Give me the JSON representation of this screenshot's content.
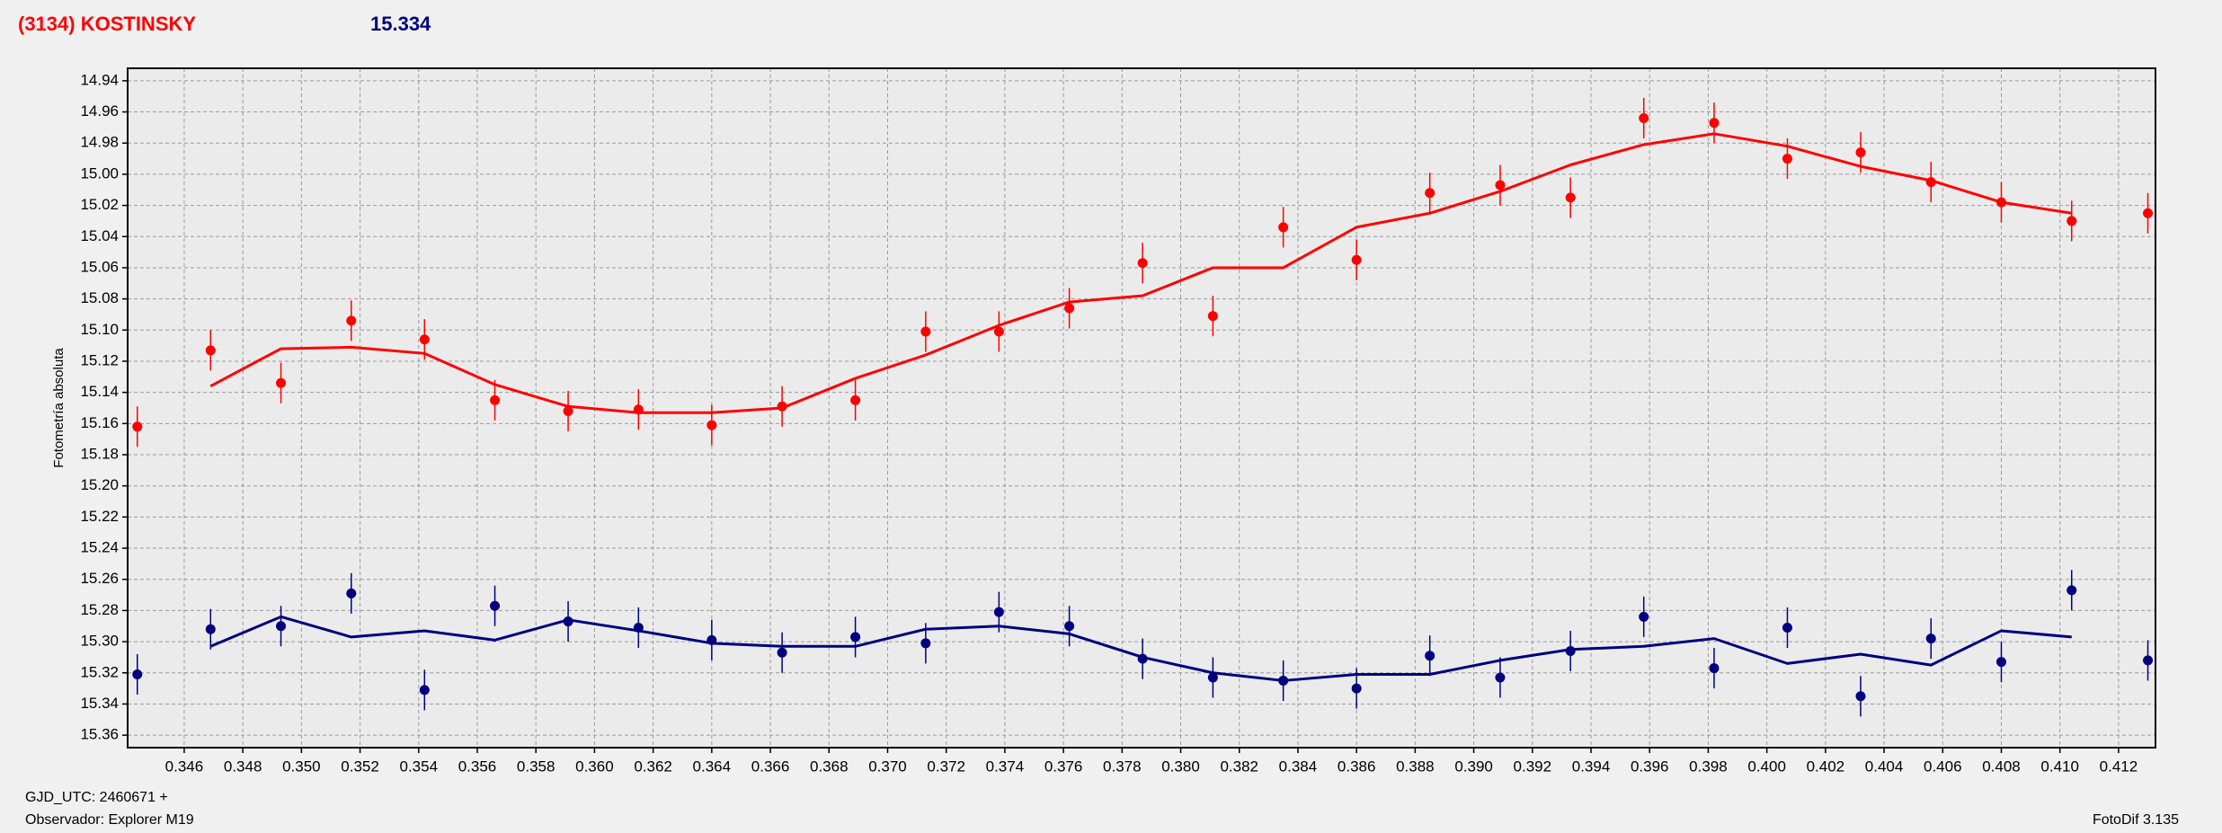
{
  "chart_data": {
    "type": "line",
    "title": "(3134) KOSTINSKY",
    "subtitle": "15.334",
    "ylabel": "Fotometría absoluta",
    "grid": true,
    "xlim": [
      0.34407,
      0.41326
    ],
    "ylim": [
      15.368,
      14.932
    ],
    "xticks": [
      0.346,
      0.348,
      {
        "value": 0.35,
        "label": "0.350"
      },
      0.352,
      0.354,
      0.356,
      0.358,
      {
        "value": 0.36,
        "label": "0.360"
      },
      0.362,
      0.364,
      0.366,
      0.368,
      {
        "value": 0.37,
        "label": "0.370"
      },
      0.372,
      0.374,
      0.376,
      0.378,
      {
        "value": 0.38,
        "label": "0.380"
      },
      0.382,
      0.384,
      0.386,
      0.388,
      {
        "value": 0.39,
        "label": "0.390"
      },
      0.392,
      0.394,
      0.396,
      0.398,
      {
        "value": 0.4,
        "label": "0.400"
      },
      0.402,
      0.404,
      0.406,
      0.408,
      {
        "value": 0.41,
        "label": "0.410"
      },
      0.412
    ],
    "yticks": [
      14.94,
      14.96,
      14.98,
      {
        "value": 15.0,
        "label": "15.00"
      },
      15.02,
      15.04,
      15.06,
      15.08,
      {
        "value": 15.1,
        "label": "15.10"
      },
      15.12,
      15.14,
      15.16,
      15.18,
      {
        "value": 15.2,
        "label": "15.20"
      },
      15.22,
      15.24,
      15.26,
      15.28,
      {
        "value": 15.3,
        "label": "15.30"
      },
      15.32,
      15.34,
      15.36
    ],
    "x": [
      0.3444,
      0.3469,
      0.3493,
      0.3517,
      0.3542,
      0.3566,
      0.3591,
      0.3615,
      0.364,
      0.3664,
      0.3689,
      0.3713,
      0.3738,
      0.3762,
      0.3787,
      0.3811,
      0.3835,
      0.386,
      0.3885,
      0.3909,
      0.3933,
      0.3958,
      0.3982,
      0.4007,
      0.4032,
      0.4056,
      0.408,
      0.4104,
      0.413
    ],
    "series": [
      {
        "style": "points",
        "color": "#ff0000",
        "error": 0.013,
        "values": [
          15.162,
          15.113,
          15.134,
          15.094,
          15.106,
          15.145,
          15.152,
          15.151,
          15.161,
          15.149,
          15.145,
          15.101,
          15.101,
          15.086,
          15.057,
          15.091,
          15.034,
          15.055,
          15.012,
          15.007,
          15.015,
          14.964,
          14.967,
          14.99,
          14.986,
          15.005,
          15.018,
          15.03,
          15.025
        ]
      },
      {
        "style": "line",
        "color": "#ff0000",
        "values": [
          null,
          15.136,
          15.112,
          15.111,
          15.115,
          15.135,
          15.149,
          15.153,
          15.153,
          15.15,
          15.131,
          15.116,
          15.097,
          15.082,
          15.078,
          15.06,
          15.06,
          15.034,
          15.025,
          15.011,
          14.994,
          14.981,
          14.974,
          14.982,
          14.995,
          15.004,
          15.018,
          15.025,
          null
        ]
      },
      {
        "style": "points",
        "color": "#000080",
        "error": 0.013,
        "values": [
          15.321,
          15.292,
          15.29,
          15.269,
          15.331,
          15.277,
          15.287,
          15.291,
          15.299,
          15.307,
          15.297,
          15.301,
          15.281,
          15.29,
          15.311,
          15.323,
          15.325,
          15.33,
          15.309,
          15.323,
          15.306,
          15.284,
          15.317,
          15.291,
          15.335,
          15.298,
          15.313,
          15.267,
          15.312
        ]
      },
      {
        "style": "line",
        "color": "#000080",
        "values": [
          null,
          15.303,
          15.284,
          15.297,
          15.293,
          15.299,
          15.286,
          15.293,
          15.301,
          15.303,
          15.303,
          15.292,
          15.29,
          15.295,
          15.31,
          15.32,
          15.325,
          15.321,
          15.321,
          15.312,
          15.305,
          15.303,
          15.298,
          15.314,
          15.308,
          15.315,
          15.293,
          15.297,
          null
        ]
      }
    ]
  },
  "footer": {
    "notes": [
      "GJD_UTC: 2460671 +",
      "Observador: Explorer M19"
    ],
    "version": "FotoDif 3.135"
  }
}
